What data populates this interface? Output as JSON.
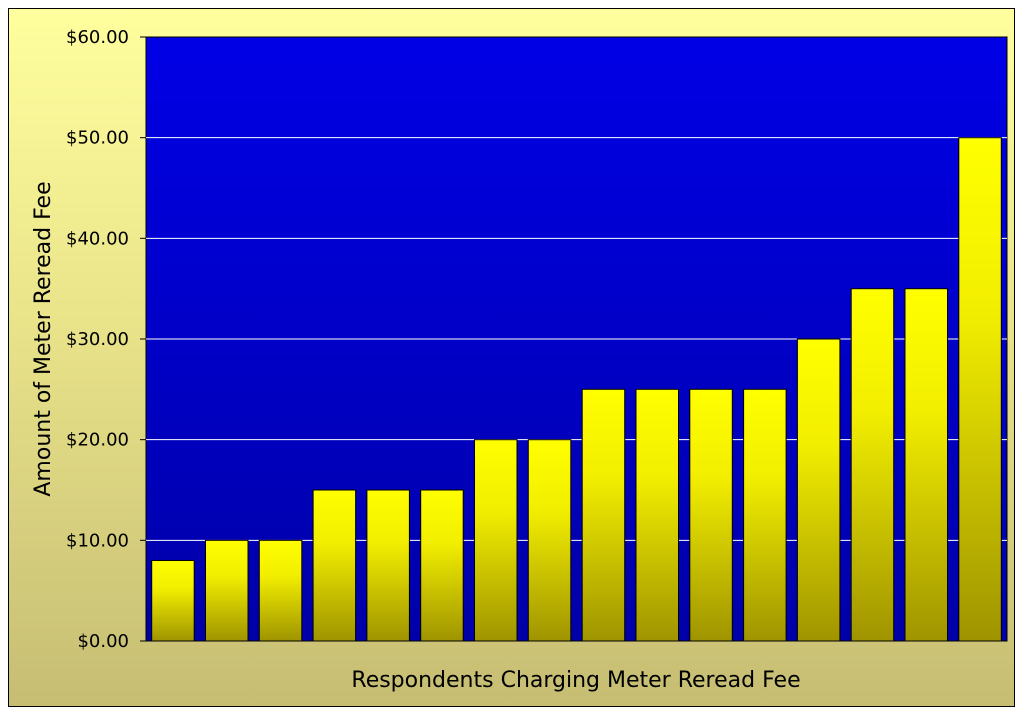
{
  "chart_data": {
    "type": "bar",
    "title": "",
    "xlabel": "Respondents Charging Meter Reread Fee",
    "ylabel": "Amount of Meter Reread Fee",
    "values": [
      8,
      10,
      10,
      15,
      15,
      15,
      20,
      20,
      25,
      25,
      25,
      25,
      30,
      35,
      35,
      50
    ],
    "ylim": [
      0,
      60
    ],
    "yticks": [
      0,
      10,
      20,
      30,
      40,
      50,
      60
    ],
    "ytick_labels": [
      "$0.00",
      "$10.00",
      "$20.00",
      "$30.00",
      "$40.00",
      "$50.00",
      "$60.00"
    ],
    "grid": true,
    "legend": "none",
    "colors": {
      "plot_area": "#0000a8",
      "plot_area_top": "#0000e6",
      "bar_top": "#ffff00",
      "bar_bottom": "#9f9400",
      "gridline": "#ffffff"
    }
  }
}
